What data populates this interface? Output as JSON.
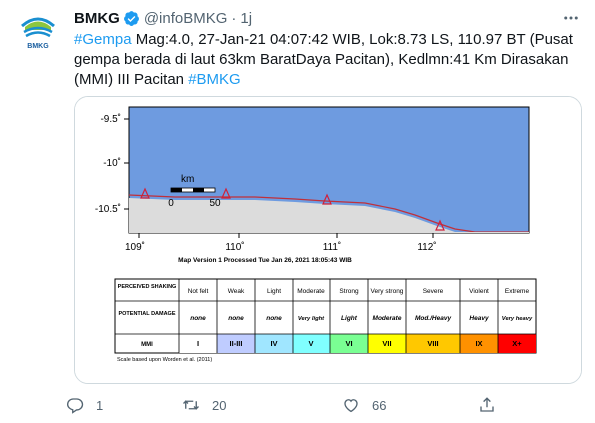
{
  "author": {
    "name": "BMKG",
    "handle": "@infoBMKG",
    "separator": "·",
    "time": "1j",
    "logo_text": "BMKG"
  },
  "tweet": {
    "segments": [
      {
        "text": "#Gempa",
        "type": "hashtag"
      },
      {
        "text": " Mag:4.0, 27-Jan-21 04:07:42 WIB, Lok:8.73 LS, 110.97 BT (Pusat gempa berada di laut 63km BaratDaya Pacitan), Kedlmn:41 Km Dirasakan (MMI) III Pacitan ",
        "type": "text"
      },
      {
        "text": "#BMKG",
        "type": "hashtag"
      }
    ]
  },
  "map": {
    "lat_labels": [
      "-9.5˚",
      "-10˚",
      "-10.5˚"
    ],
    "lon_labels": [
      "109˚",
      "110˚",
      "111˚",
      "112˚"
    ],
    "scale_unit": "km",
    "scale_ticks": [
      "0",
      "50"
    ],
    "caption": "Map Version 1 Processed Tue Jan 26, 2021 18:05:43 WIB",
    "sea_color": "#6e9be0",
    "land_color": "#dcdcdc"
  },
  "mmi_table": {
    "row_headers": [
      "PERCEIVED SHAKING",
      "POTENTIAL DAMAGE",
      "MMI"
    ],
    "shaking": [
      "Not felt",
      "Weak",
      "Light",
      "Moderate",
      "Strong",
      "Very strong",
      "Severe",
      "Violent",
      "Extreme"
    ],
    "damage": [
      "none",
      "none",
      "none",
      "Very light",
      "Light",
      "Moderate",
      "Mod./Heavy",
      "Heavy",
      "Very heavy"
    ],
    "mmi": [
      "I",
      "II-III",
      "IV",
      "V",
      "VI",
      "VII",
      "VIII",
      "IX",
      "X+"
    ],
    "mmi_colors": [
      "#ffffff",
      "#bfccff",
      "#a0e6ff",
      "#80ffff",
      "#7aff93",
      "#ffff00",
      "#ffc800",
      "#ff9100",
      "#ff0000"
    ],
    "footnote": "Scale based upon Worden et al. (2011)"
  },
  "actions": {
    "reply_count": "1",
    "retweet_count": "20",
    "like_count": "66"
  },
  "colors": {
    "accent": "#1d9bf0",
    "secondary_text": "#536471"
  }
}
